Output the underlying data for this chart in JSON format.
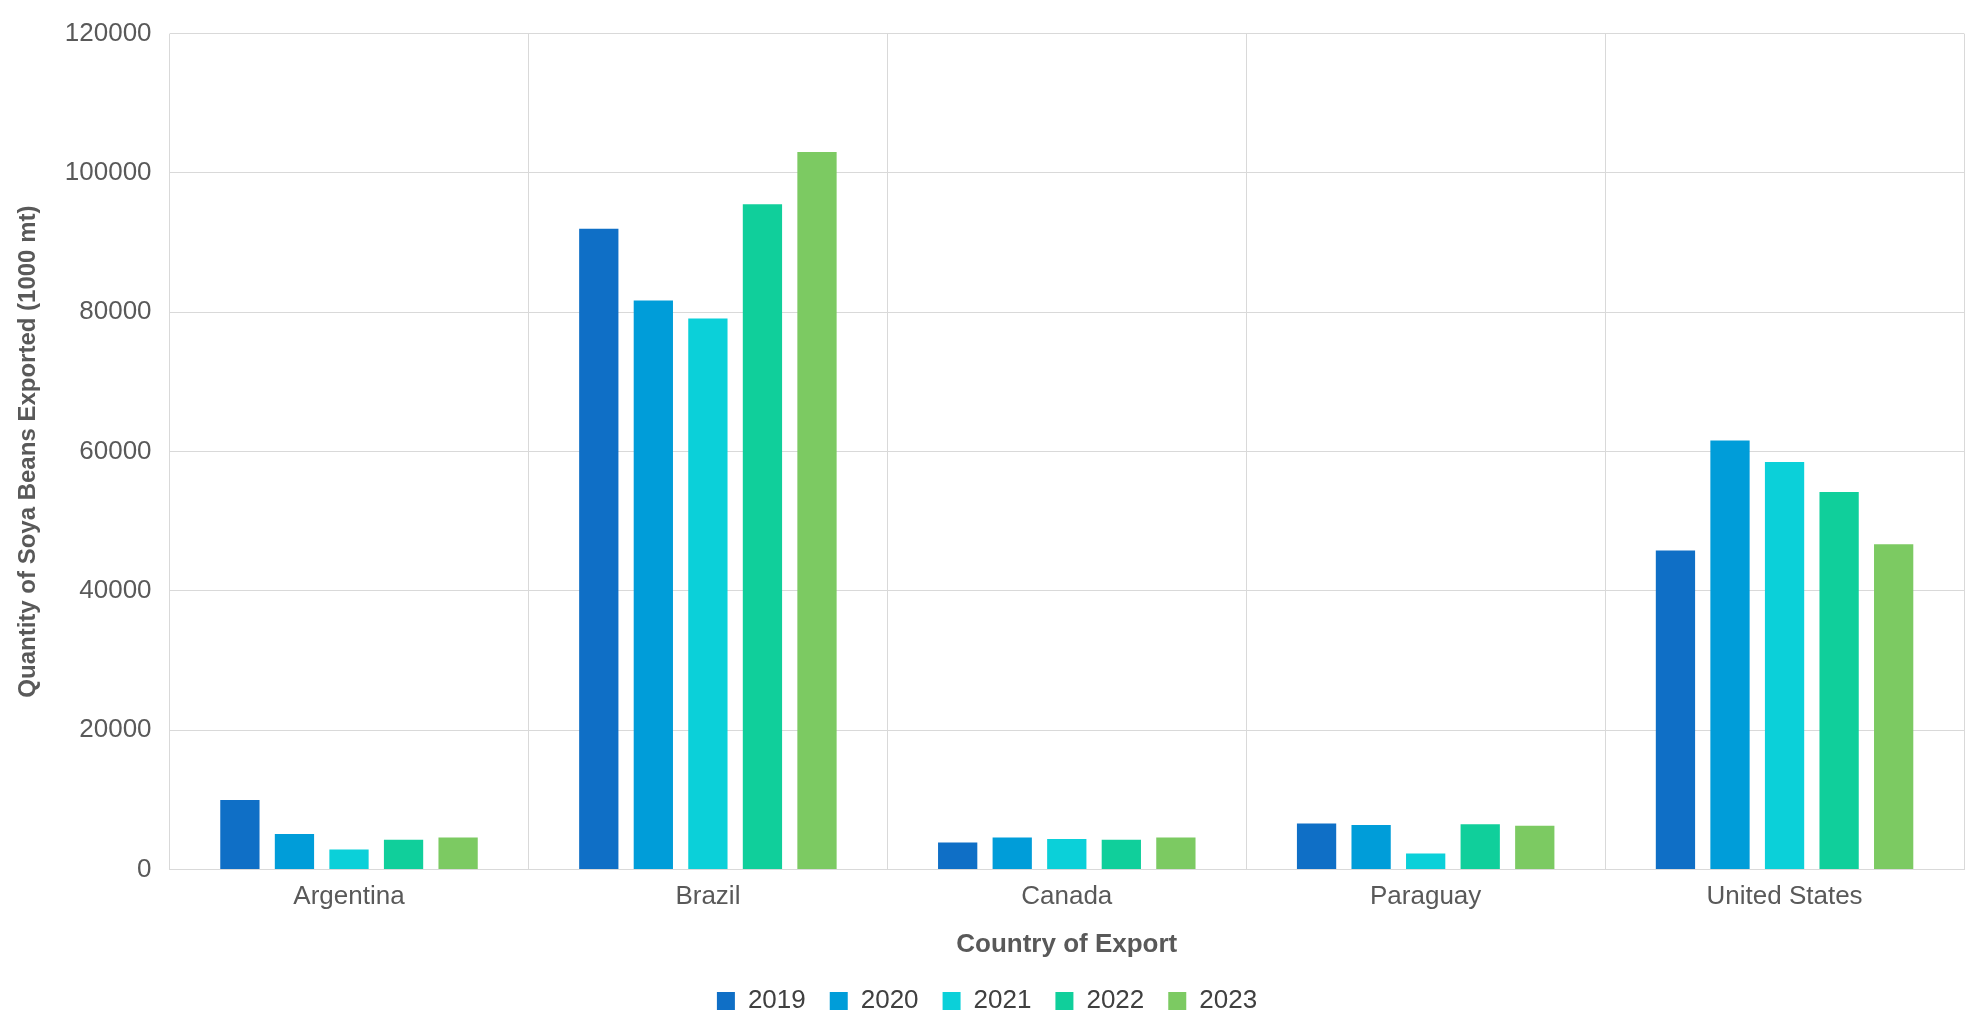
{
  "chart_data": {
    "type": "bar",
    "xlabel": "Country of Export",
    "ylabel": "Quantity of Soya Beans Exported (1000 mt)",
    "categories": [
      "Argentina",
      "Brazil",
      "Canada",
      "Paraguay",
      "United States"
    ],
    "series": [
      {
        "name": "2019",
        "color": "#0f6fc6",
        "values": [
          10000,
          92000,
          3900,
          6600,
          45800
        ]
      },
      {
        "name": "2020",
        "color": "#009dd9",
        "values": [
          5100,
          81700,
          4600,
          6400,
          61600
        ]
      },
      {
        "name": "2021",
        "color": "#0bd0d9",
        "values": [
          2900,
          79100,
          4400,
          2300,
          58500
        ]
      },
      {
        "name": "2022",
        "color": "#10cf9b",
        "values": [
          4300,
          95500,
          4300,
          6500,
          54200
        ]
      },
      {
        "name": "2023",
        "color": "#7cca62",
        "values": [
          4600,
          103000,
          4600,
          6300,
          46700
        ]
      }
    ],
    "ylim": [
      0,
      120000
    ],
    "yticks": [
      0,
      20000,
      40000,
      60000,
      80000,
      100000,
      120000
    ],
    "grid": true,
    "legend": "bottom"
  }
}
